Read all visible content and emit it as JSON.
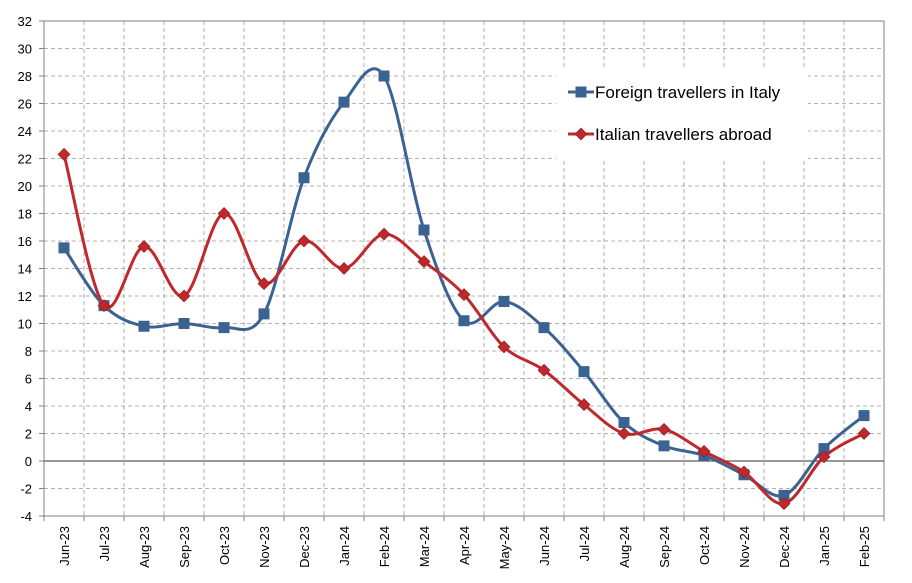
{
  "chart_data": {
    "type": "line",
    "categories": [
      "Jun-23",
      "Jul-23",
      "Aug-23",
      "Sep-23",
      "Oct-23",
      "Nov-23",
      "Dec-23",
      "Jan-24",
      "Feb-24",
      "Mar-24",
      "Apr-24",
      "May-24",
      "Jun-24",
      "Jul-24",
      "Aug-24",
      "Sep-24",
      "Oct-24",
      "Nov-24",
      "Dec-24",
      "Jan-25",
      "Feb-25"
    ],
    "ylim": [
      -4,
      32
    ],
    "yticks": [
      -4,
      -2,
      0,
      2,
      4,
      6,
      8,
      10,
      12,
      14,
      16,
      18,
      20,
      22,
      24,
      26,
      28,
      30,
      32
    ],
    "grid": true,
    "legend_position": "top-right",
    "series": [
      {
        "name": "Foreign travellers in Italy",
        "color": "#3B6392",
        "marker": "square",
        "values": [
          15.5,
          11.3,
          9.8,
          10.0,
          9.7,
          10.7,
          20.6,
          26.1,
          28.0,
          16.8,
          10.2,
          11.6,
          9.7,
          6.5,
          2.8,
          1.1,
          0.4,
          -1.0,
          -2.5,
          0.9,
          3.3
        ]
      },
      {
        "name": "Italian travellers abroad",
        "color": "#C0282C",
        "marker": "diamond",
        "values": [
          22.3,
          11.3,
          15.6,
          12.0,
          18.0,
          12.9,
          16.0,
          14.0,
          16.5,
          14.5,
          12.1,
          8.3,
          6.6,
          4.1,
          2.0,
          2.3,
          0.7,
          -0.8,
          -3.1,
          0.3,
          2.0
        ]
      }
    ]
  }
}
